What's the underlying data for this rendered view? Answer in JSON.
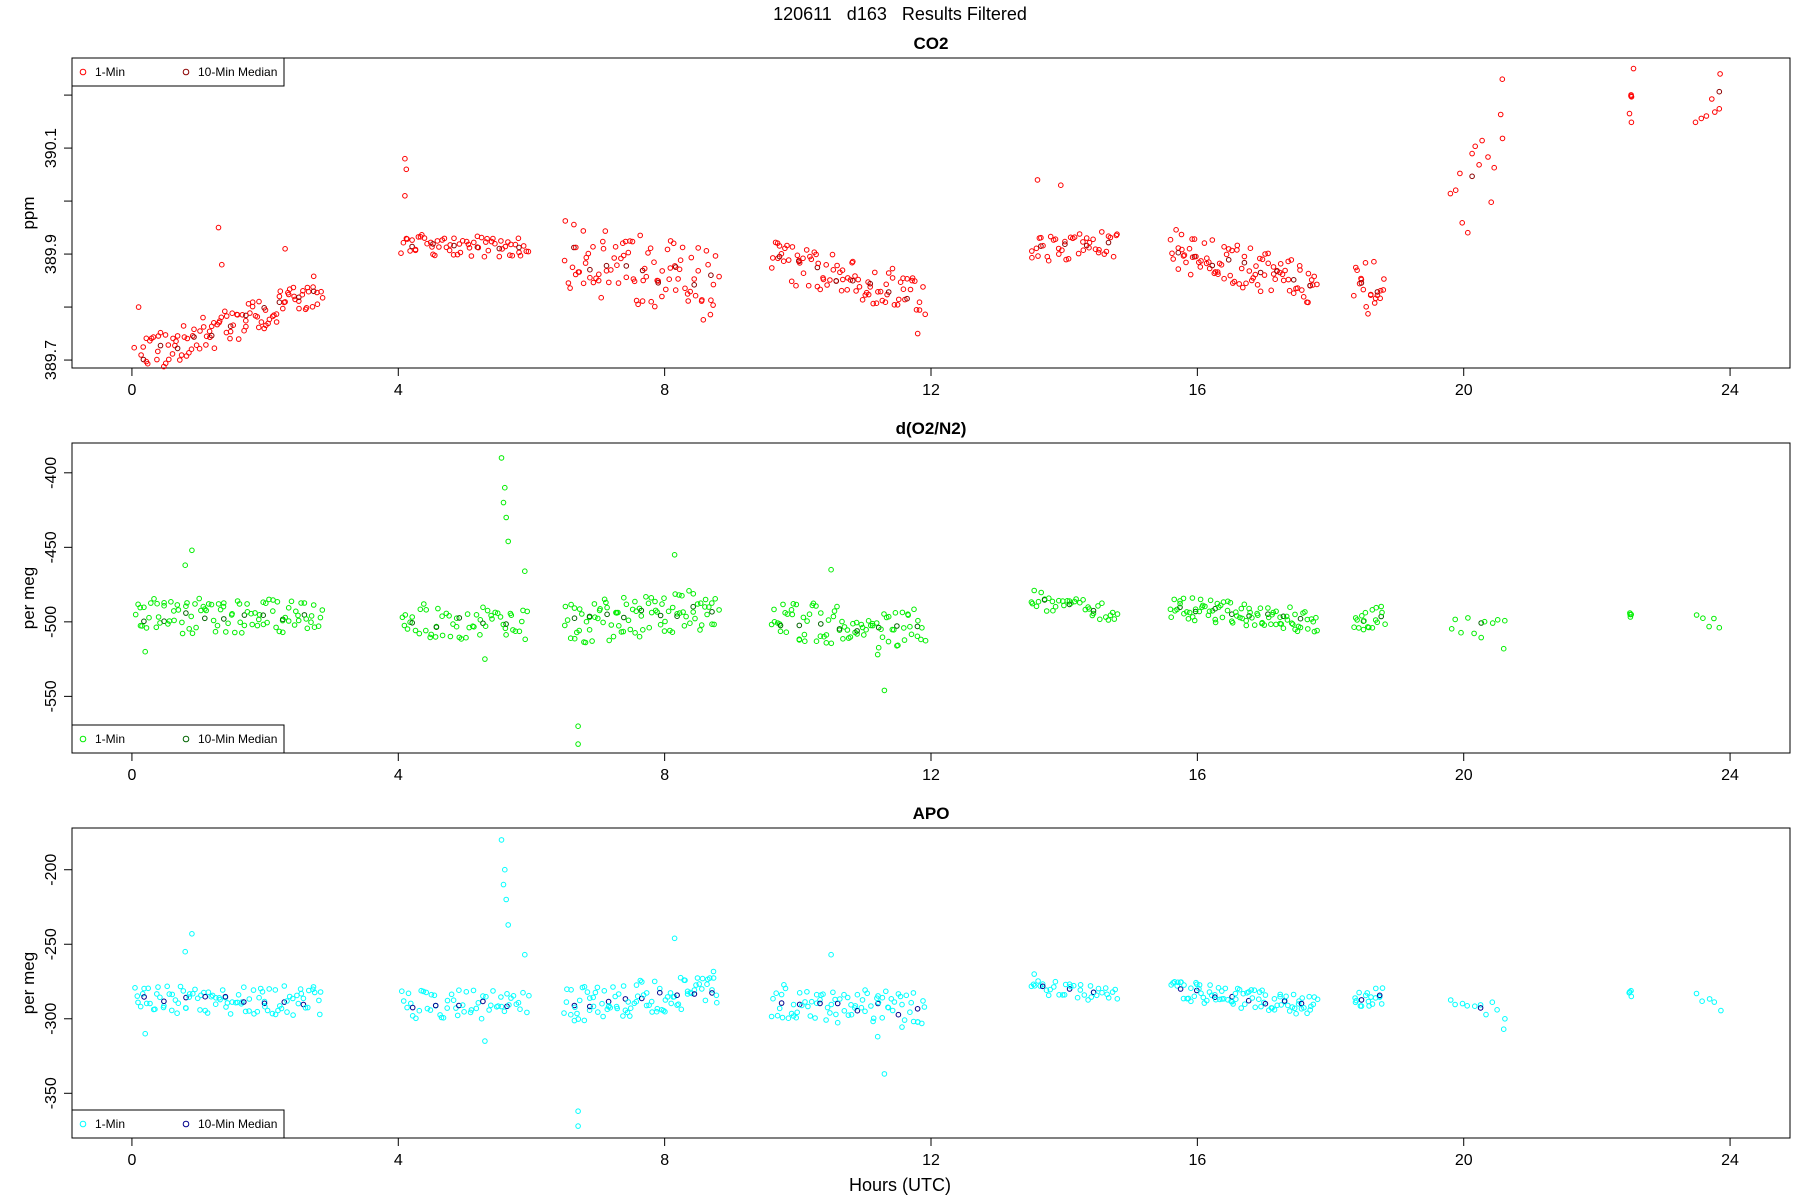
{
  "page": {
    "title": "120611   d163   Results Filtered",
    "xlabel": "Hours (UTC)"
  },
  "chart_data": [
    {
      "type": "scatter",
      "title": "CO2",
      "ylabel": "ppm",
      "xlim": [
        -0.9,
        24.9
      ],
      "ylim": [
        389.685,
        390.27
      ],
      "xticks": [
        0,
        4,
        8,
        12,
        16,
        20,
        24
      ],
      "yticks": [
        389.7,
        389.8,
        389.9,
        390.0,
        390.1,
        390.2
      ],
      "ytick_labels": [
        "389.7",
        "",
        "389.9",
        "",
        "390.1",
        ""
      ],
      "legend": {
        "position": "top-left",
        "entries": [
          "1-Min",
          "10-Min Median"
        ]
      },
      "colors": {
        "one_min": "#ff0000",
        "median": "#8b0000"
      },
      "segments": [
        {
          "x0": 0.05,
          "x1": 2.85,
          "y0": 389.7,
          "y1": 389.83,
          "spread": 0.035,
          "n": 110,
          "outliers": [
            [
              1.3,
              389.95
            ],
            [
              1.35,
              389.88
            ],
            [
              2.3,
              389.91
            ],
            [
              0.1,
              389.8
            ]
          ]
        },
        {
          "x0": 4.05,
          "x1": 5.95,
          "y0": 389.92,
          "y1": 389.91,
          "spread": 0.02,
          "n": 60,
          "outliers": [
            [
              4.1,
              390.08
            ],
            [
              4.12,
              390.06
            ],
            [
              4.1,
              390.01
            ]
          ]
        },
        {
          "x0": 6.5,
          "x1": 8.8,
          "y0": 389.9,
          "y1": 389.84,
          "spread": 0.07,
          "n": 90,
          "outliers": []
        },
        {
          "x0": 9.6,
          "x1": 11.9,
          "y0": 389.89,
          "y1": 389.82,
          "spread": 0.04,
          "n": 85,
          "outliers": [
            [
              11.8,
              389.75
            ]
          ]
        },
        {
          "x0": 13.5,
          "x1": 14.8,
          "y0": 389.91,
          "y1": 389.92,
          "spread": 0.025,
          "n": 40,
          "outliers": [
            [
              13.6,
              390.04
            ],
            [
              13.95,
              390.03
            ]
          ]
        },
        {
          "x0": 15.6,
          "x1": 17.8,
          "y0": 389.91,
          "y1": 389.84,
          "spread": 0.04,
          "n": 90,
          "outliers": []
        },
        {
          "x0": 18.35,
          "x1": 18.8,
          "y0": 389.83,
          "y1": 389.84,
          "spread": 0.05,
          "n": 20,
          "outliers": []
        },
        {
          "x0": 19.8,
          "x1": 20.6,
          "y0": 389.98,
          "y1": 390.1,
          "spread": 0.08,
          "n": 14,
          "outliers": [
            [
              20.58,
              390.23
            ]
          ]
        },
        {
          "x0": 22.5,
          "x1": 22.5,
          "y0": 390.15,
          "y1": 390.15,
          "spread": 0.06,
          "n": 5,
          "outliers": [
            [
              22.55,
              390.25
            ]
          ]
        },
        {
          "x0": 23.5,
          "x1": 23.85,
          "y0": 390.17,
          "y1": 390.2,
          "spread": 0.03,
          "n": 6,
          "outliers": [
            [
              23.85,
              390.24
            ]
          ]
        }
      ]
    },
    {
      "type": "scatter",
      "title": "d(O2/N2)",
      "ylabel": "per meg",
      "xlim": [
        -0.9,
        24.9
      ],
      "ylim": [
        -588,
        -380
      ],
      "xticks": [
        0,
        4,
        8,
        12,
        16,
        20,
        24
      ],
      "yticks": [
        -400,
        -450,
        -500,
        -550
      ],
      "ytick_labels": [
        "-400",
        "-450",
        "-500",
        "-550"
      ],
      "legend": {
        "position": "bottom-left",
        "entries": [
          "1-Min",
          "10-Min Median"
        ]
      },
      "colors": {
        "one_min": "#00ee00",
        "median": "#006400"
      },
      "segments": [
        {
          "x0": 0.05,
          "x1": 2.85,
          "y0": -496,
          "y1": -497,
          "spread": 12,
          "n": 95,
          "outliers": [
            [
              0.8,
              -462
            ],
            [
              0.9,
              -452
            ],
            [
              0.2,
              -520
            ]
          ]
        },
        {
          "x0": 4.05,
          "x1": 5.95,
          "y0": -500,
          "y1": -500,
          "spread": 12,
          "n": 55,
          "outliers": [
            [
              5.55,
              -390
            ],
            [
              5.6,
              -410
            ],
            [
              5.58,
              -420
            ],
            [
              5.62,
              -430
            ],
            [
              5.65,
              -446
            ],
            [
              5.9,
              -466
            ],
            [
              5.3,
              -525
            ]
          ]
        },
        {
          "x0": 6.5,
          "x1": 8.8,
          "y0": -502,
          "y1": -490,
          "spread": 14,
          "n": 90,
          "outliers": [
            [
              6.7,
              -570
            ],
            [
              6.7,
              -582
            ],
            [
              8.15,
              -455
            ]
          ]
        },
        {
          "x0": 9.6,
          "x1": 11.9,
          "y0": -500,
          "y1": -505,
          "spread": 14,
          "n": 80,
          "outliers": [
            [
              11.3,
              -546
            ],
            [
              11.2,
              -522
            ],
            [
              10.5,
              -465
            ]
          ]
        },
        {
          "x0": 13.5,
          "x1": 14.8,
          "y0": -485,
          "y1": -495,
          "spread": 6,
          "n": 35,
          "outliers": [
            [
              13.55,
              -479
            ]
          ]
        },
        {
          "x0": 15.6,
          "x1": 17.8,
          "y0": -490,
          "y1": -500,
          "spread": 8,
          "n": 85,
          "outliers": []
        },
        {
          "x0": 18.35,
          "x1": 18.8,
          "y0": -500,
          "y1": -495,
          "spread": 8,
          "n": 18,
          "outliers": []
        },
        {
          "x0": 19.8,
          "x1": 20.6,
          "y0": -500,
          "y1": -505,
          "spread": 8,
          "n": 10,
          "outliers": [
            [
              20.6,
              -518
            ]
          ]
        },
        {
          "x0": 22.5,
          "x1": 22.5,
          "y0": -494,
          "y1": -494,
          "spread": 4,
          "n": 4,
          "outliers": []
        },
        {
          "x0": 23.5,
          "x1": 23.85,
          "y0": -498,
          "y1": -502,
          "spread": 4,
          "n": 5,
          "outliers": []
        }
      ]
    },
    {
      "type": "scatter",
      "title": "APO",
      "ylabel": "per meg",
      "xlim": [
        -0.9,
        24.9
      ],
      "ylim": [
        -380,
        -172
      ],
      "xticks": [
        0,
        4,
        8,
        12,
        16,
        20,
        24
      ],
      "yticks": [
        -200,
        -250,
        -300,
        -350
      ],
      "ytick_labels": [
        "-200",
        "-250",
        "-300",
        "-350"
      ],
      "legend": {
        "position": "bottom-left",
        "entries": [
          "1-Min",
          "10-Min Median"
        ]
      },
      "colors": {
        "one_min": "#00ffff",
        "median": "#00008b"
      },
      "segments": [
        {
          "x0": 0.05,
          "x1": 2.85,
          "y0": -287,
          "y1": -288,
          "spread": 10,
          "n": 95,
          "outliers": [
            [
              0.8,
              -255
            ],
            [
              0.9,
              -243
            ],
            [
              0.2,
              -310
            ]
          ]
        },
        {
          "x0": 4.05,
          "x1": 5.95,
          "y0": -290,
          "y1": -290,
          "spread": 10,
          "n": 55,
          "outliers": [
            [
              5.55,
              -180
            ],
            [
              5.6,
              -200
            ],
            [
              5.58,
              -210
            ],
            [
              5.62,
              -220
            ],
            [
              5.65,
              -237
            ],
            [
              5.9,
              -257
            ],
            [
              5.3,
              -315
            ]
          ]
        },
        {
          "x0": 6.5,
          "x1": 8.8,
          "y0": -292,
          "y1": -280,
          "spread": 12,
          "n": 90,
          "outliers": [
            [
              6.7,
              -362
            ],
            [
              6.7,
              -372
            ],
            [
              8.15,
              -246
            ]
          ]
        },
        {
          "x0": 9.6,
          "x1": 11.9,
          "y0": -288,
          "y1": -295,
          "spread": 12,
          "n": 80,
          "outliers": [
            [
              11.3,
              -337
            ],
            [
              11.2,
              -312
            ],
            [
              10.5,
              -257
            ]
          ]
        },
        {
          "x0": 13.5,
          "x1": 14.8,
          "y0": -278,
          "y1": -285,
          "spread": 5,
          "n": 35,
          "outliers": [
            [
              13.55,
              -270
            ]
          ]
        },
        {
          "x0": 15.6,
          "x1": 17.8,
          "y0": -280,
          "y1": -292,
          "spread": 7,
          "n": 85,
          "outliers": []
        },
        {
          "x0": 18.35,
          "x1": 18.8,
          "y0": -290,
          "y1": -285,
          "spread": 7,
          "n": 18,
          "outliers": []
        },
        {
          "x0": 19.8,
          "x1": 20.6,
          "y0": -290,
          "y1": -296,
          "spread": 7,
          "n": 10,
          "outliers": [
            [
              20.6,
              -307
            ]
          ]
        },
        {
          "x0": 22.5,
          "x1": 22.5,
          "y0": -284,
          "y1": -284,
          "spread": 3,
          "n": 4,
          "outliers": []
        },
        {
          "x0": 23.5,
          "x1": 23.85,
          "y0": -286,
          "y1": -292,
          "spread": 4,
          "n": 5,
          "outliers": []
        }
      ]
    }
  ]
}
